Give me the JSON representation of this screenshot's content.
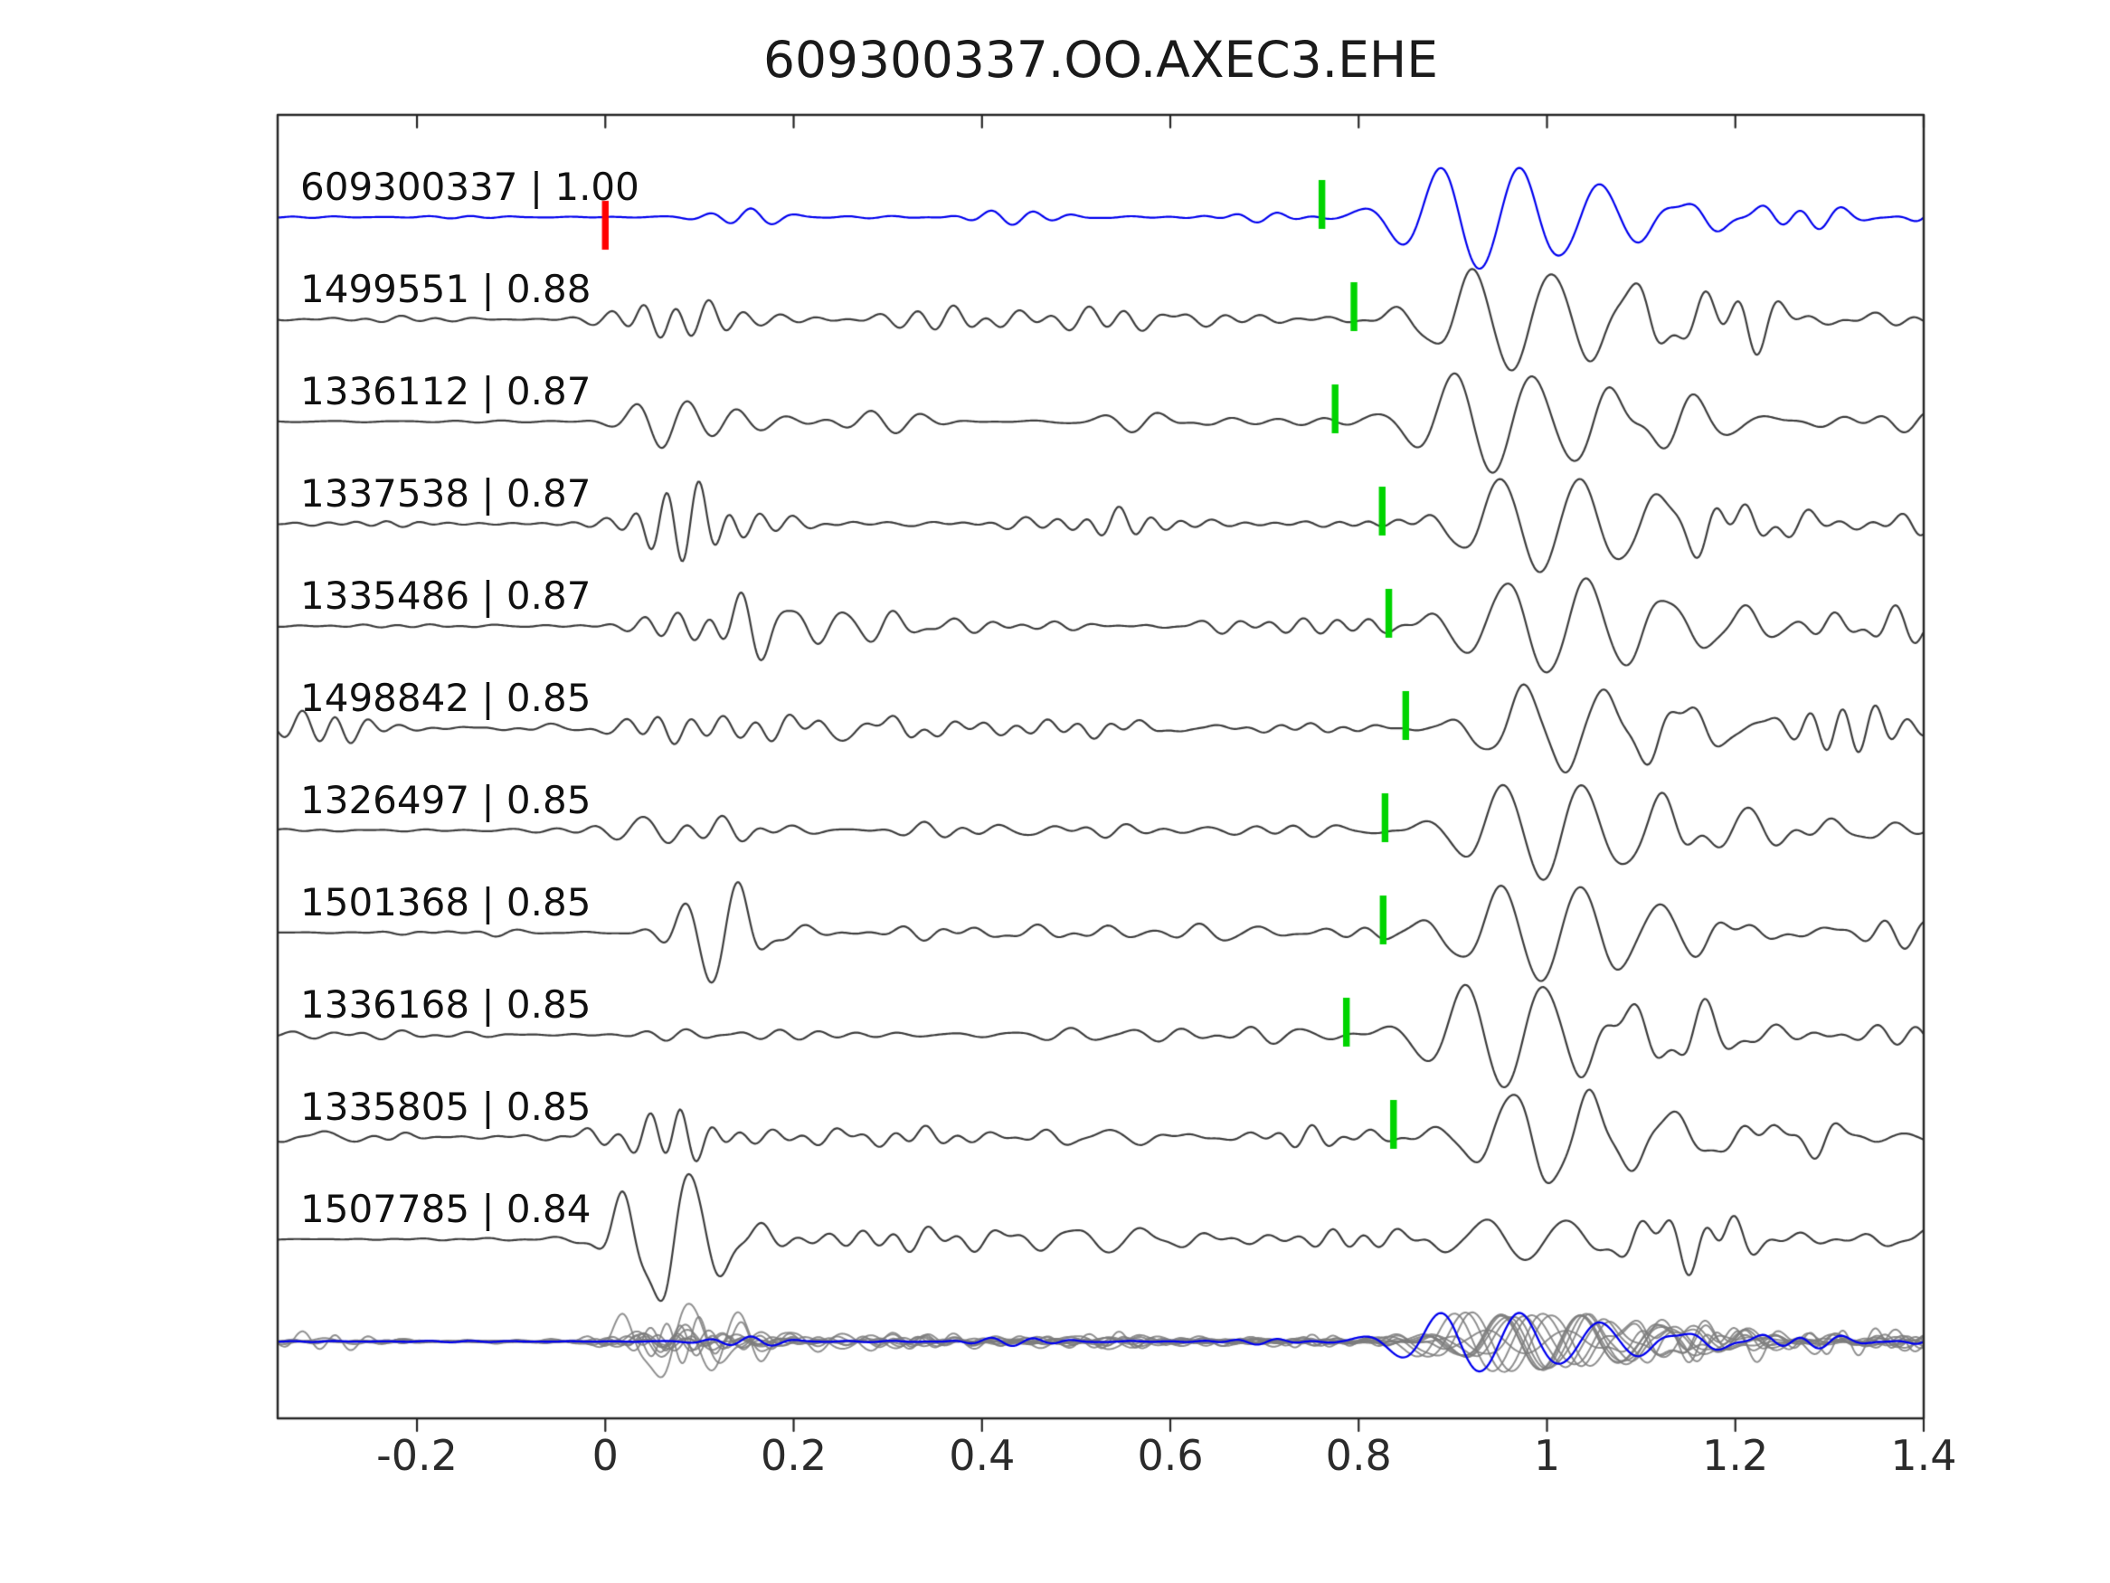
{
  "title": "609300337.OO.AXEC3.EHE",
  "chart_data": {
    "type": "line",
    "title": "609300337.OO.AXEC3.EHE",
    "subtitle": "",
    "xlabel": "",
    "ylabel": "",
    "xlim": [
      -0.35,
      1.4
    ],
    "x_ticks": [
      -0.2,
      0,
      0.2,
      0.4,
      0.6,
      0.8,
      1,
      1.2,
      1.4
    ],
    "x_tick_labels": [
      "-0.2",
      "0",
      "0.2",
      "0.4",
      "0.6",
      "0.8",
      "1",
      "1.2",
      "1.4"
    ],
    "grid": false,
    "legend": "none",
    "colors": {
      "template_trace": "#0000ee",
      "detection_trace": "#3d3d3d",
      "overlay_trace": "#7d7d7d",
      "pick_marker": "#00d400",
      "template_pick_marker": "#ff0000",
      "axis": "#262626",
      "text": "#1a1a1a"
    },
    "description": "Template waveform (blue, top) with 10 matched detection waveforms (grey), pick times marked green, template origin marked red at t=0; bottom row overlays all traces.",
    "traces": [
      {
        "id": "609300337",
        "correlation": "1.00",
        "label": "609300337 | 1.00",
        "is_template": true,
        "pick_time": 0.761,
        "template_marker_time": 0.0,
        "seed": 101,
        "waveform_amp": {
          "pre": 0.9,
          "p": 3,
          "mid": 3.2,
          "s": 58,
          "tail": 7
        }
      },
      {
        "id": "1499551",
        "correlation": "0.88",
        "label": "1499551 | 0.88",
        "is_template": false,
        "pick_time": 0.795,
        "seed": 202,
        "waveform_amp": {
          "pre": 1.6,
          "p": 20,
          "mid": 8,
          "s": 56,
          "tail": 10
        }
      },
      {
        "id": "1336112",
        "correlation": "0.87",
        "label": "1336112 | 0.87",
        "is_template": false,
        "pick_time": 0.775,
        "seed": 303,
        "waveform_amp": {
          "pre": 1.6,
          "p": 22,
          "mid": 8,
          "s": 56,
          "tail": 9
        }
      },
      {
        "id": "1337538",
        "correlation": "0.87",
        "label": "1337538 | 0.87",
        "is_template": false,
        "pick_time": 0.825,
        "seed": 404,
        "waveform_amp": {
          "pre": 1.8,
          "p": 18,
          "mid": 8,
          "s": 54,
          "tail": 10
        }
      },
      {
        "id": "1335486",
        "correlation": "0.87",
        "label": "1335486 | 0.87",
        "is_template": false,
        "pick_time": 0.832,
        "seed": 505,
        "waveform_amp": {
          "pre": 2.2,
          "p": 26,
          "mid": 11,
          "s": 54,
          "tail": 10
        }
      },
      {
        "id": "1498842",
        "correlation": "0.85",
        "label": "1498842 | 0.85",
        "is_template": false,
        "pick_time": 0.85,
        "seed": 606,
        "waveform_amp": {
          "pre": 7,
          "p": 20,
          "mid": 12,
          "s": 50,
          "tail": 12
        }
      },
      {
        "id": "1326497",
        "correlation": "0.85",
        "label": "1326497 | 0.85",
        "is_template": false,
        "pick_time": 0.828,
        "seed": 707,
        "waveform_amp": {
          "pre": 2.5,
          "p": 24,
          "mid": 10,
          "s": 55,
          "tail": 10
        }
      },
      {
        "id": "1501368",
        "correlation": "0.85",
        "label": "1501368 | 0.85",
        "is_template": false,
        "pick_time": 0.826,
        "seed": 808,
        "waveform_amp": {
          "pre": 2,
          "p": 24,
          "mid": 10,
          "s": 55,
          "tail": 9
        }
      },
      {
        "id": "1336168",
        "correlation": "0.85",
        "label": "1336168 | 0.85",
        "is_template": false,
        "pick_time": 0.787,
        "seed": 909,
        "waveform_amp": {
          "pre": 2.5,
          "p": 9,
          "mid": 7,
          "s": 58,
          "tail": 11
        }
      },
      {
        "id": "1335805",
        "correlation": "0.85",
        "label": "1335805 | 0.85",
        "is_template": false,
        "pick_time": 0.837,
        "seed": 1010,
        "waveform_amp": {
          "pre": 6,
          "p": 16,
          "mid": 11,
          "s": 50,
          "tail": 10
        }
      },
      {
        "id": "1507785",
        "correlation": "0.84",
        "label": "1507785 | 0.84",
        "is_template": false,
        "pick_time": null,
        "seed": 1111,
        "waveform_amp": {
          "pre": 1.5,
          "p": 68,
          "mid": 12,
          "s": 24,
          "tail": 11
        }
      }
    ],
    "overlay_row": {
      "includes_all_traces": true,
      "template_on_top": true
    }
  }
}
